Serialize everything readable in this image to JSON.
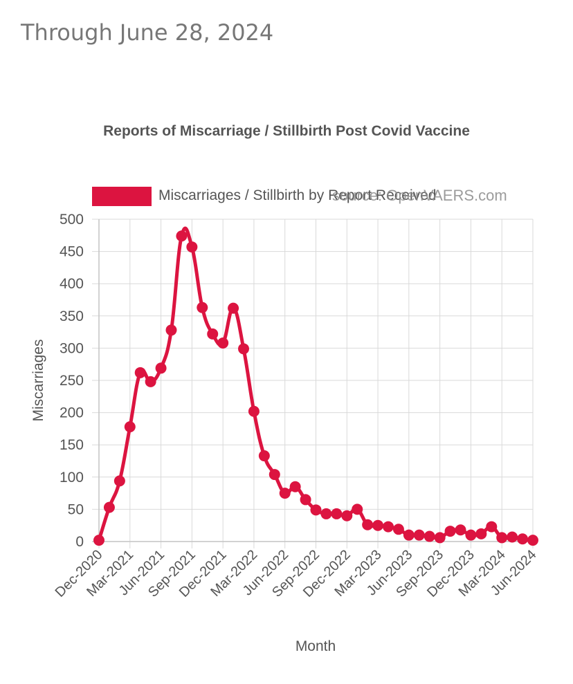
{
  "header_text": "Through June 28, 2024",
  "source_text": "source: OpenVAERS.com",
  "chart_data": {
    "type": "line",
    "title": "Reports of Miscarriage / Stillbirth Post Covid Vaccine",
    "xlabel": "Month",
    "ylabel": "Miscarriages",
    "ylim": [
      0,
      500
    ],
    "yticks": [
      0,
      50,
      100,
      150,
      200,
      250,
      300,
      350,
      400,
      450,
      500
    ],
    "x_tick_labels": [
      "Dec-2020",
      "Mar-2021",
      "Jun-2021",
      "Sep-2021",
      "Dec-2021",
      "Mar-2022",
      "Jun-2022",
      "Sep-2022",
      "Dec-2022",
      "Mar-2023",
      "Jun-2023",
      "Sep-2023",
      "Dec-2023",
      "Mar-2024",
      "Jun-2024"
    ],
    "categories": [
      "Dec-2020",
      "Jan-2021",
      "Feb-2021",
      "Mar-2021",
      "Apr-2021",
      "May-2021",
      "Jun-2021",
      "Jul-2021",
      "Aug-2021",
      "Sep-2021",
      "Oct-2021",
      "Nov-2021",
      "Dec-2021",
      "Jan-2022",
      "Feb-2022",
      "Mar-2022",
      "Apr-2022",
      "May-2022",
      "Jun-2022",
      "Jul-2022",
      "Aug-2022",
      "Sep-2022",
      "Oct-2022",
      "Nov-2022",
      "Dec-2022",
      "Jan-2023",
      "Feb-2023",
      "Mar-2023",
      "Apr-2023",
      "May-2023",
      "Jun-2023",
      "Jul-2023",
      "Aug-2023",
      "Sep-2023",
      "Oct-2023",
      "Nov-2023",
      "Dec-2023",
      "Jan-2024",
      "Feb-2024",
      "Mar-2024",
      "Apr-2024",
      "May-2024",
      "Jun-2024"
    ],
    "series": [
      {
        "name": "Miscarriages / Stillbirth by Report Received",
        "color": "#dc1440",
        "values": [
          2,
          53,
          94,
          178,
          262,
          248,
          269,
          328,
          474,
          457,
          363,
          322,
          308,
          362,
          299,
          202,
          133,
          104,
          75,
          85,
          65,
          49,
          43,
          43,
          40,
          50,
          26,
          25,
          23,
          19,
          10,
          10,
          8,
          6,
          16,
          18,
          10,
          12,
          23,
          6,
          7,
          4,
          2
        ]
      }
    ],
    "grid": true,
    "legend_position": "top"
  }
}
